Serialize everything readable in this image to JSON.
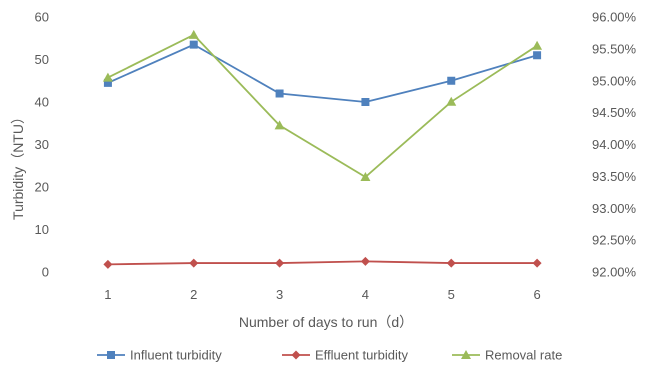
{
  "chart_data": {
    "type": "line",
    "categories": [
      "1",
      "2",
      "3",
      "4",
      "5",
      "6"
    ],
    "xlabel": "Number of days to run（d）",
    "ylabel": "Turbidity（NTU）",
    "ylim": [
      0,
      60
    ],
    "y_ticks": [
      "0",
      "10",
      "20",
      "30",
      "40",
      "50",
      "60"
    ],
    "y2lim": [
      0.92,
      0.96
    ],
    "y2_ticks": [
      "92.00%",
      "92.50%",
      "93.00%",
      "93.50%",
      "94.00%",
      "94.50%",
      "95.00%",
      "95.50%",
      "96.00%"
    ],
    "grid": false,
    "legend_position": "bottom",
    "series": [
      {
        "name": "Influent turbidity",
        "axis": "left",
        "marker": "square",
        "color": "#4f81bd",
        "values": [
          44.5,
          53.5,
          42.0,
          40.0,
          45.0,
          51.0
        ]
      },
      {
        "name": "Effluent turbidity",
        "axis": "left",
        "marker": "diamond",
        "color": "#c0504d",
        "values": [
          1.8,
          2.1,
          2.1,
          2.5,
          2.1,
          2.1
        ]
      },
      {
        "name": "Removal rate",
        "axis": "right",
        "marker": "triangle",
        "color": "#9bbb59",
        "values": [
          0.9505,
          0.9572,
          0.943,
          0.9349,
          0.9467,
          0.9555
        ]
      }
    ]
  }
}
